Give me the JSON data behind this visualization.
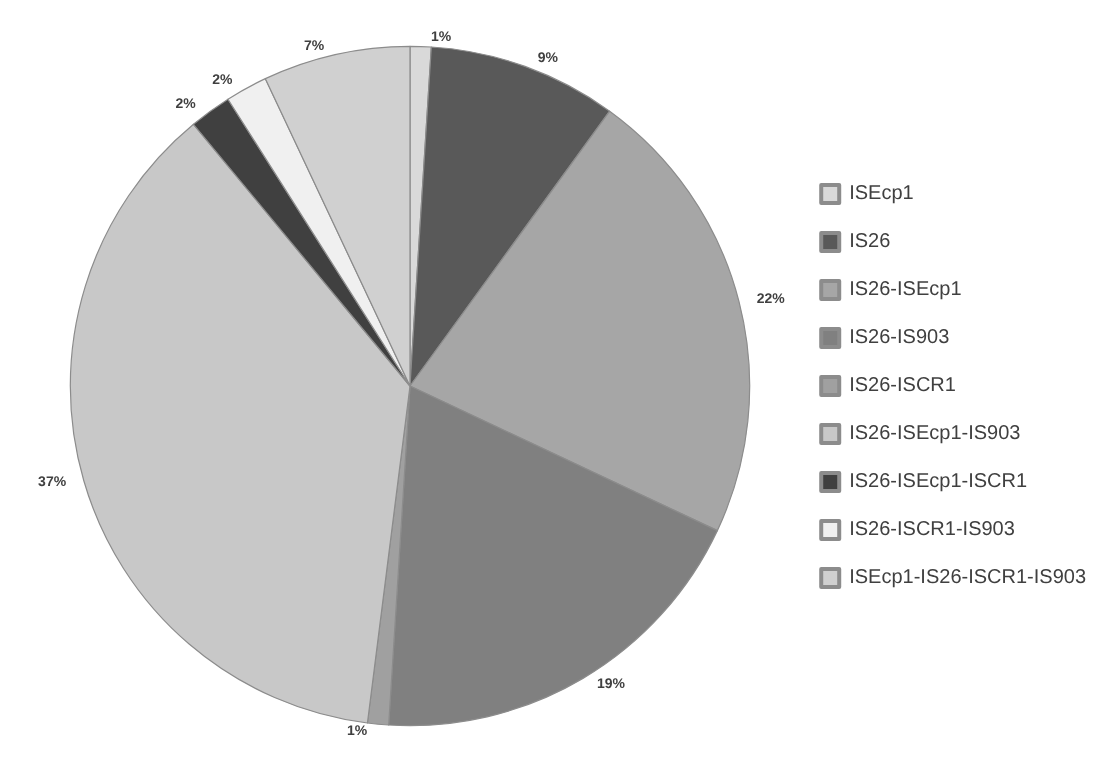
{
  "chart_data": {
    "type": "pie",
    "categories": [
      "ISEcp1",
      "IS26",
      "IS26-ISEcp1",
      "IS26-IS903",
      "IS26-ISCR1",
      "IS26-ISEcp1-IS903",
      "IS26-ISEcp1-ISCR1",
      "IS26-ISCR1-IS903",
      "ISEcp1-IS26-ISCR1-IS903"
    ],
    "values": [
      1,
      9,
      22,
      19,
      1,
      37,
      2,
      2,
      7
    ],
    "value_labels": [
      "1%",
      "9%",
      "22%",
      "19%",
      "1%",
      "37%",
      "2%",
      "2%",
      "7%"
    ],
    "colors": [
      "#d9d9d9",
      "#595959",
      "#a6a6a6",
      "#808080",
      "#a0a0a0",
      "#c8c8c8",
      "#404040",
      "#f0f0f0",
      "#d0d0d0"
    ],
    "legend": "right"
  }
}
